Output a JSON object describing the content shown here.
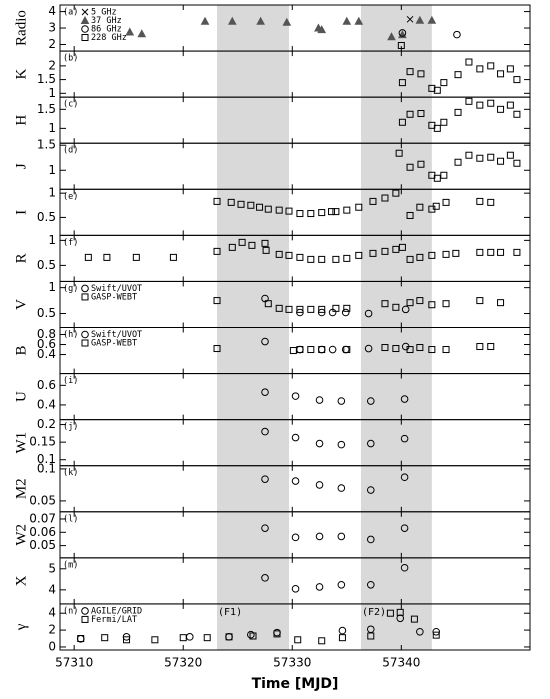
{
  "chart_data": [
    {
      "type": "scatter",
      "panel_label": "(a)",
      "ylabel": "Radio",
      "ylim": [
        1.6,
        4.4
      ],
      "yticks": [
        2,
        3,
        4
      ],
      "series": [
        {
          "name": "5 GHz",
          "marker": "x",
          "color": "#000000",
          "x": [
            57340.8
          ],
          "values": [
            3.53
          ]
        },
        {
          "name": "37 GHz",
          "marker": "triangle",
          "filled": true,
          "color": "#555555",
          "x": [
            57315.1,
            57316.2,
            57322.0,
            57324.5,
            57327.1,
            57329.5,
            57332.4,
            57332.7,
            57335.0,
            57336.1,
            57339.1,
            57340.1,
            57341.7,
            57342.8
          ],
          "values": [
            2.76,
            2.65,
            3.41,
            3.41,
            3.41,
            3.35,
            3.0,
            2.9,
            3.41,
            3.41,
            2.47,
            2.6,
            3.47,
            3.47
          ]
        },
        {
          "name": "86 GHz",
          "marker": "circle",
          "color": "#000000",
          "x": [
            57340.1,
            57345.1
          ],
          "values": [
            2.7,
            2.6
          ]
        },
        {
          "name": "228 GHz",
          "marker": "square",
          "color": "#000000",
          "x": [
            57340.0
          ],
          "values": [
            1.94
          ]
        }
      ]
    },
    {
      "type": "scatter",
      "panel_label": "(b)",
      "ylabel": "K",
      "ylim": [
        0.86,
        2.54
      ],
      "yticks": [
        1,
        1.5,
        2
      ],
      "series": [
        {
          "marker": "square",
          "color": "#000000",
          "x": [
            57340.1,
            57340.8,
            57341.8,
            57342.8,
            57343.3,
            57343.9,
            57345.2,
            57346.2,
            57347.2,
            57348.2,
            57349.1,
            57350.0,
            57350.6
          ],
          "values": [
            1.39,
            1.79,
            1.71,
            1.18,
            1.11,
            1.39,
            1.68,
            2.14,
            1.89,
            2.0,
            1.71,
            1.89,
            1.5
          ]
        }
      ]
    },
    {
      "type": "scatter",
      "panel_label": "(c)",
      "ylabel": "H",
      "ylim": [
        0.61,
        1.82
      ],
      "yticks": [
        1,
        1.5
      ],
      "series": [
        {
          "marker": "square",
          "color": "#000000",
          "x": [
            57340.1,
            57340.8,
            57341.8,
            57342.8,
            57343.3,
            57343.9,
            57345.2,
            57346.2,
            57347.2,
            57348.2,
            57349.1,
            57350.0,
            57350.6
          ],
          "values": [
            1.16,
            1.37,
            1.39,
            1.08,
            1.0,
            1.16,
            1.42,
            1.71,
            1.61,
            1.66,
            1.5,
            1.61,
            1.37
          ]
        }
      ]
    },
    {
      "type": "scatter",
      "panel_label": "(d)",
      "ylabel": "J",
      "ylim": [
        0.62,
        1.54
      ],
      "yticks": [
        1,
        1.5
      ],
      "series": [
        {
          "marker": "square",
          "color": "#000000",
          "x": [
            57339.8,
            57340.8,
            57341.8,
            57342.8,
            57343.3,
            57343.9,
            57345.2,
            57346.2,
            57347.2,
            57348.2,
            57349.1,
            57350.0,
            57350.6
          ],
          "values": [
            1.34,
            1.06,
            1.12,
            0.9,
            0.84,
            0.9,
            1.16,
            1.3,
            1.24,
            1.26,
            1.18,
            1.3,
            1.14
          ]
        }
      ]
    },
    {
      "type": "scatter",
      "panel_label": "(e)",
      "ylabel": "I",
      "ylim": [
        0.13,
        1.08
      ],
      "yticks": [
        0.5,
        1
      ],
      "series": [
        {
          "marker": "square",
          "color": "#000000",
          "x": [
            57323.1,
            57324.4,
            57325.3,
            57326.2,
            57327.0,
            57327.8,
            57328.8,
            57329.7,
            57330.7,
            57331.7,
            57332.7,
            57333.6,
            57334.0,
            57335.0,
            57336.1,
            57337.4,
            57338.5,
            57339.5,
            57340.8,
            57341.7,
            57342.8,
            57343.2,
            57344.1,
            57347.2,
            57348.2
          ],
          "values": [
            0.83,
            0.81,
            0.77,
            0.75,
            0.71,
            0.67,
            0.65,
            0.63,
            0.58,
            0.58,
            0.6,
            0.62,
            0.62,
            0.65,
            0.71,
            0.83,
            0.9,
            1.0,
            0.54,
            0.71,
            0.67,
            0.73,
            0.81,
            0.83,
            0.81
          ]
        }
      ]
    },
    {
      "type": "scatter",
      "panel_label": "(f)",
      "ylabel": "R",
      "ylim": [
        0.18,
        1.1
      ],
      "yticks": [
        0.5,
        1
      ],
      "series": [
        {
          "marker": "square",
          "color": "#000000",
          "x": [
            57311.3,
            57313.0,
            57315.7,
            57319.1,
            57323.1,
            57324.5,
            57325.4,
            57326.3,
            57327.5,
            57327.6,
            57328.8,
            57329.7,
            57330.7,
            57331.7,
            57332.7,
            57334.0,
            57335.0,
            57336.1,
            57337.4,
            57338.5,
            57339.5,
            57340.1,
            57340.8,
            57341.7,
            57342.8,
            57344.1,
            57345.0,
            57347.2,
            57348.2,
            57349.1,
            57350.6
          ],
          "values": [
            0.66,
            0.66,
            0.66,
            0.66,
            0.78,
            0.86,
            0.96,
            0.9,
            0.94,
            0.8,
            0.72,
            0.7,
            0.66,
            0.62,
            0.62,
            0.62,
            0.64,
            0.7,
            0.74,
            0.78,
            0.82,
            0.86,
            0.62,
            0.66,
            0.7,
            0.72,
            0.74,
            0.76,
            0.76,
            0.76,
            0.76
          ]
        }
      ]
    },
    {
      "type": "scatter",
      "panel_label": "(g)",
      "ylabel": "V",
      "ylim": [
        0.23,
        1.12
      ],
      "yticks": [
        0.5,
        1
      ],
      "series": [
        {
          "name": "Swift/UVOT",
          "marker": "circle",
          "color": "#000000",
          "x": [
            57327.5,
            57330.7,
            57332.7,
            57333.7,
            57334.9,
            57337.0,
            57340.4
          ],
          "values": [
            0.79,
            0.52,
            0.52,
            0.52,
            0.52,
            0.5,
            0.58
          ]
        },
        {
          "name": "GASP-WEBT",
          "marker": "square",
          "color": "#000000",
          "x": [
            57323.1,
            57327.8,
            57328.8,
            57329.7,
            57330.7,
            57331.7,
            57332.7,
            57334.0,
            57335.0,
            57338.5,
            57339.5,
            57340.8,
            57341.7,
            57342.8,
            57344.1,
            57347.2,
            57349.1
          ],
          "values": [
            0.75,
            0.69,
            0.6,
            0.58,
            0.58,
            0.58,
            0.58,
            0.6,
            0.6,
            0.69,
            0.62,
            0.71,
            0.75,
            0.67,
            0.69,
            0.75,
            0.71
          ]
        }
      ]
    },
    {
      "type": "scatter",
      "panel_label": "(h)",
      "ylabel": "B",
      "ylim": [
        0.02,
        0.94
      ],
      "yticks": [
        0.4,
        0.6,
        0.8
      ],
      "series": [
        {
          "name": "Swift/UVOT",
          "marker": "circle",
          "color": "#000000",
          "x": [
            57327.5,
            57330.7,
            57332.7,
            57333.7,
            57334.9,
            57337.0,
            57340.4
          ],
          "values": [
            0.66,
            0.5,
            0.5,
            0.5,
            0.5,
            0.52,
            0.56
          ]
        },
        {
          "name": "GASP-WEBT",
          "marker": "square",
          "color": "#000000",
          "x": [
            57323.1,
            57330.1,
            57330.7,
            57331.7,
            57332.7,
            57335.0,
            57338.5,
            57339.5,
            57340.8,
            57341.7,
            57342.8,
            57344.1,
            57347.2,
            57348.2
          ],
          "values": [
            0.52,
            0.48,
            0.5,
            0.5,
            0.5,
            0.5,
            0.54,
            0.52,
            0.5,
            0.54,
            0.5,
            0.5,
            0.56,
            0.56
          ]
        }
      ]
    },
    {
      "type": "scatter",
      "panel_label": "(i)",
      "ylabel": "U",
      "ylim": [
        0.25,
        0.72
      ],
      "yticks": [
        0.4,
        0.6
      ],
      "series": [
        {
          "marker": "circle",
          "color": "#000000",
          "x": [
            57327.5,
            57330.3,
            57332.5,
            57334.5,
            57337.2,
            57340.3
          ],
          "values": [
            0.53,
            0.49,
            0.45,
            0.44,
            0.44,
            0.46
          ]
        }
      ]
    },
    {
      "type": "scatter",
      "panel_label": "(j)",
      "ylabel": "W1",
      "ylim": [
        0.083,
        0.214
      ],
      "yticks": [
        0.1,
        0.15,
        0.2
      ],
      "series": [
        {
          "marker": "circle",
          "color": "#000000",
          "x": [
            57327.5,
            57330.3,
            57332.5,
            57334.5,
            57337.2,
            57340.3
          ],
          "values": [
            0.18,
            0.163,
            0.146,
            0.143,
            0.146,
            0.16
          ]
        }
      ]
    },
    {
      "type": "scatter",
      "panel_label": "(k)",
      "ylabel": "M2",
      "ylim": [
        0.033,
        0.105
      ],
      "yticks": [
        0.05,
        0.1
      ],
      "series": [
        {
          "marker": "circle",
          "color": "#000000",
          "x": [
            57327.5,
            57330.3,
            57332.5,
            57334.5,
            57337.2,
            57340.3
          ],
          "values": [
            0.084,
            0.081,
            0.075,
            0.07,
            0.067,
            0.087
          ]
        }
      ]
    },
    {
      "type": "scatter",
      "panel_label": "(l)",
      "ylabel": "W2",
      "ylim": [
        0.0408,
        0.0754
      ],
      "yticks": [
        0.05,
        0.06,
        0.07
      ],
      "series": [
        {
          "marker": "circle",
          "color": "#000000",
          "x": [
            57327.5,
            57330.3,
            57332.5,
            57334.5,
            57337.2,
            57340.3
          ],
          "values": [
            0.0631,
            0.0562,
            0.0569,
            0.0569,
            0.0546,
            0.0631
          ]
        }
      ]
    },
    {
      "type": "scatter",
      "panel_label": "(m)",
      "ylabel": "X",
      "ylim": [
        3.33,
        5.52
      ],
      "yticks": [
        4,
        5
      ],
      "series": [
        {
          "marker": "circle",
          "color": "#000000",
          "x": [
            57327.5,
            57330.3,
            57332.5,
            57334.5,
            57337.2,
            57340.3
          ],
          "values": [
            4.57,
            4.05,
            4.14,
            4.24,
            4.24,
            5.05
          ]
        }
      ]
    },
    {
      "type": "scatter",
      "panel_label": "(n)",
      "ylabel": "γ",
      "ylim": [
        -0.36,
        5.1
      ],
      "yticks": [
        0,
        2,
        4
      ],
      "xlabel": "Time [MJD]",
      "xlim": [
        57308.7,
        57351.8
      ],
      "xticks": [
        57310,
        57320,
        57330,
        57340
      ],
      "shaded": [
        [
          57323.1,
          57329.7
        ],
        [
          57336.3,
          57342.8
        ]
      ],
      "annotations": [
        "(F1)",
        "(F2)"
      ],
      "series": [
        {
          "name": "AGILE/GRID",
          "marker": "circle",
          "color": "#000000",
          "x": [
            57310.6,
            57314.8,
            57320.6,
            57324.2,
            57326.2,
            57328.6,
            57334.6,
            57337.2,
            57339.9,
            57341.7,
            57343.2
          ],
          "values": [
            0.97,
            1.2,
            1.2,
            1.2,
            1.45,
            1.7,
            1.94,
            2.1,
            3.4,
            1.8,
            1.8
          ]
        },
        {
          "name": "Fermi/LAT",
          "marker": "square",
          "color": "#000000",
          "x": [
            57310.6,
            57312.8,
            57314.8,
            57317.4,
            57320.0,
            57322.2,
            57324.2,
            57326.4,
            57328.6,
            57330.5,
            57332.7,
            57334.6,
            57337.2,
            57339.0,
            57339.9,
            57341.2,
            57343.2
          ],
          "values": [
            1.0,
            1.1,
            0.85,
            0.85,
            1.1,
            1.1,
            1.2,
            1.3,
            1.55,
            0.85,
            0.73,
            1.1,
            1.3,
            4.0,
            4.1,
            3.3,
            1.4
          ]
        }
      ]
    }
  ]
}
